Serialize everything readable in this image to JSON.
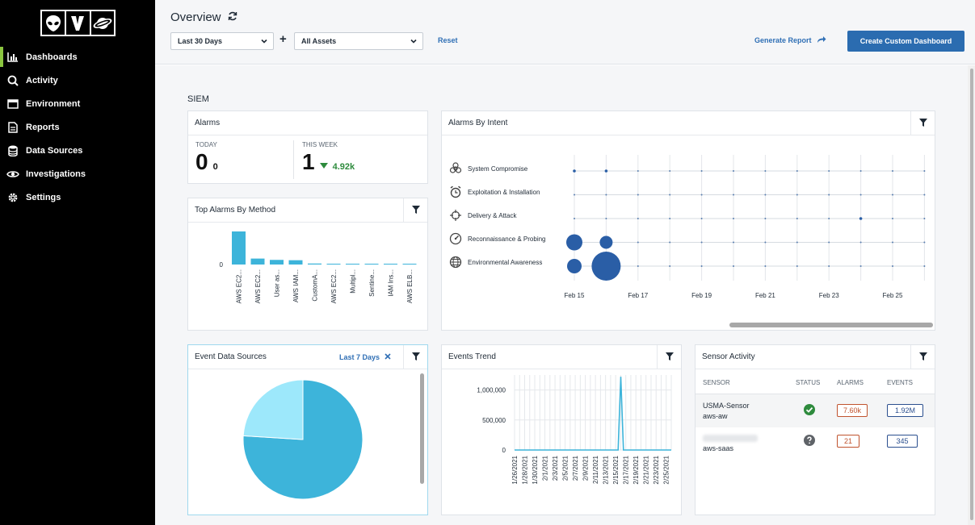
{
  "sidebar": {
    "items": [
      {
        "label": "Dashboards",
        "icon": "bar-chart-icon",
        "active": true
      },
      {
        "label": "Activity",
        "icon": "search-icon"
      },
      {
        "label": "Environment",
        "icon": "window-icon"
      },
      {
        "label": "Reports",
        "icon": "document-icon"
      },
      {
        "label": "Data Sources",
        "icon": "database-icon"
      },
      {
        "label": "Investigations",
        "icon": "eye-icon"
      },
      {
        "label": "Settings",
        "icon": "gear-icon"
      }
    ]
  },
  "header": {
    "title": "Overview",
    "date_range": "Last 30 Days",
    "assets": "All Assets",
    "plus": "+",
    "reset": "Reset",
    "generate_report": "Generate Report",
    "create_dashboard": "Create Custom Dashboard"
  },
  "section_title": "SIEM",
  "alarms": {
    "title": "Alarms",
    "today_label": "TODAY",
    "today_value": "0",
    "today_sub": "0",
    "week_label": "THIS WEEK",
    "week_value": "1",
    "week_sub": "4.92k"
  },
  "top_alarms": {
    "title": "Top Alarms By Method",
    "chart_data": {
      "type": "bar",
      "categories": [
        "AWS EC2...",
        "AWS EC2...",
        "User as...",
        "AWS IAM...",
        "CustomA...",
        "AWS EC2...",
        "Multipl...",
        "Sentine...",
        "IAM Ins...",
        "AWS ELB..."
      ],
      "values": [
        100,
        18,
        14,
        13,
        3,
        2,
        2,
        1,
        1,
        1
      ],
      "ytick": "0"
    }
  },
  "alarms_by_intent": {
    "title": "Alarms By Intent",
    "categories": [
      "System Compromise",
      "Exploitation & Installation",
      "Delivery & Attack",
      "Reconnaissance & Probing",
      "Environmental Awareness"
    ],
    "icons": [
      "biohazard-icon",
      "alarm-clock-icon",
      "crosshair-icon",
      "gauge-icon",
      "globe-icon"
    ],
    "x_ticks": [
      "Feb 15",
      "Feb 17",
      "Feb 19",
      "Feb 21",
      "Feb 23",
      "Feb 25"
    ],
    "chart_data": {
      "type": "scatter",
      "points": [
        {
          "row": 0,
          "col": 0,
          "size": 1
        },
        {
          "row": 0,
          "col": 1,
          "size": 1
        },
        {
          "row": 2,
          "col": 9,
          "size": 1
        },
        {
          "row": 3,
          "col": 0,
          "size": 10
        },
        {
          "row": 3,
          "col": 1,
          "size": 8
        },
        {
          "row": 4,
          "col": 0,
          "size": 9
        },
        {
          "row": 4,
          "col": 1,
          "size": 18
        }
      ]
    }
  },
  "event_sources": {
    "title": "Event Data Sources",
    "filter_label": "Last 7 Days",
    "chart_data": {
      "type": "pie",
      "slices": [
        {
          "value": 76,
          "color": "#3db4da"
        },
        {
          "value": 24,
          "color": "#9de8fb"
        }
      ]
    }
  },
  "events_trend": {
    "title": "Events Trend",
    "chart_data": {
      "type": "line",
      "y_ticks": [
        "1,000,000",
        "500,000",
        "0"
      ],
      "x_ticks": [
        "1/26/2021",
        "1/28/2021",
        "1/30/2021",
        "2/1/2021",
        "2/3/2021",
        "2/5/2021",
        "2/7/2021",
        "2/9/2021",
        "2/11/2021",
        "2/13/2021",
        "2/15/2021",
        "2/17/2021",
        "2/19/2021",
        "2/21/2021",
        "2/23/2021",
        "2/25/2021"
      ],
      "ylim": [
        0,
        1250000
      ],
      "values": [
        0,
        0,
        0,
        0,
        0,
        0,
        0,
        0,
        0,
        0,
        0,
        0,
        0,
        0,
        0,
        0,
        0,
        0,
        0,
        0,
        0,
        0,
        0,
        0,
        0,
        0,
        0,
        0,
        0,
        0,
        0,
        0,
        0,
        0,
        0,
        0,
        0,
        0,
        0,
        0,
        1220000,
        0,
        0,
        0,
        0,
        0,
        0,
        0,
        0,
        0,
        0,
        0,
        0,
        0,
        0,
        0,
        0,
        0,
        0,
        0
      ]
    }
  },
  "sensor_activity": {
    "title": "Sensor Activity",
    "headers": [
      "SENSOR",
      "STATUS",
      "ALARMS",
      "EVENTS"
    ],
    "rows": [
      {
        "name": "USMA-Sensor",
        "sub": "aws-aw",
        "status": "check-icon",
        "alarms": "7.60k",
        "events": "1.92M"
      },
      {
        "name": "",
        "sub": "aws-saas",
        "status": "question-icon",
        "alarms": "21",
        "events": "345"
      }
    ]
  }
}
